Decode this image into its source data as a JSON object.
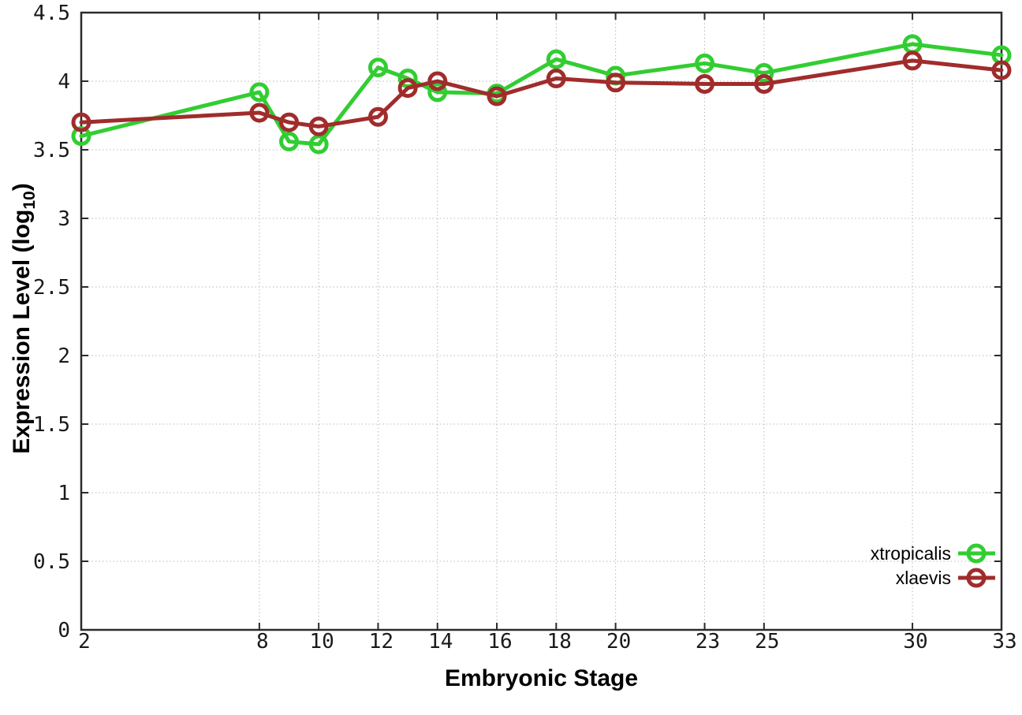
{
  "chart_data": {
    "type": "line",
    "title": "",
    "xlabel": "Embryonic Stage",
    "ylabel": "Expression Level (log10)",
    "ylabel_parts": {
      "prefix": "Expression Level (log",
      "sub": "10",
      "suffix": ")"
    },
    "x": [
      2,
      8,
      9,
      10,
      12,
      13,
      14,
      16,
      18,
      20,
      23,
      25,
      30,
      33
    ],
    "series": [
      {
        "name": "xtropicalis",
        "color": "#32cd32",
        "values": [
          3.6,
          3.92,
          3.56,
          3.54,
          4.1,
          4.02,
          3.92,
          3.91,
          4.16,
          4.04,
          4.13,
          4.06,
          4.27,
          4.19
        ]
      },
      {
        "name": "xlaevis",
        "color": "#a02c2c",
        "values": [
          3.7,
          3.77,
          3.7,
          3.67,
          3.74,
          3.95,
          4.0,
          3.89,
          4.02,
          3.99,
          3.98,
          3.98,
          4.15,
          4.08
        ]
      }
    ],
    "xlim": [
      2,
      33
    ],
    "ylim": [
      0,
      4.5
    ],
    "xticks": [
      2,
      8,
      10,
      12,
      14,
      16,
      18,
      20,
      23,
      25,
      30,
      33
    ],
    "yticks": [
      0,
      0.5,
      1,
      1.5,
      2,
      2.5,
      3,
      3.5,
      4,
      4.5
    ],
    "grid": true,
    "legend_position": "inside-bottom-right",
    "marker": "open-circle"
  },
  "style_colors": {
    "border": "#2b2b2b",
    "grid": "#b8b8b8",
    "tick_label": "#1a1a1a",
    "legend_text": "#000000",
    "background": "#ffffff"
  }
}
